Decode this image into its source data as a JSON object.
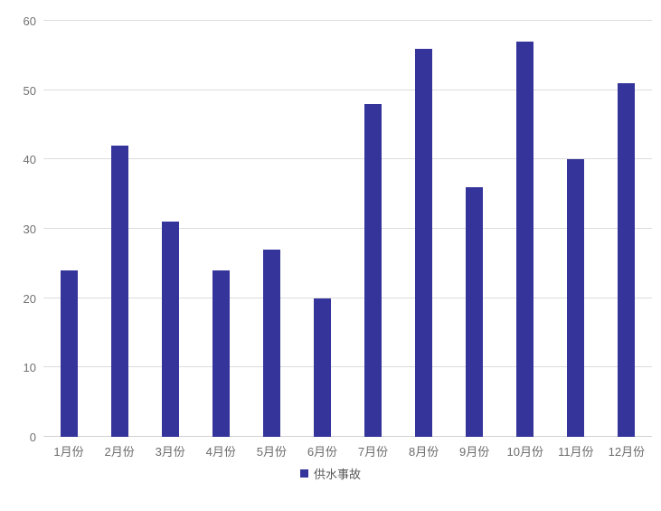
{
  "chart_data": {
    "type": "bar",
    "title": "",
    "categories": [
      "1月份",
      "2月份",
      "3月份",
      "4月份",
      "5月份",
      "6月份",
      "7月份",
      "8月份",
      "9月份",
      "10月份",
      "11月份",
      "12月份"
    ],
    "values": [
      24,
      42,
      31,
      24,
      27,
      20,
      48,
      56,
      36,
      57,
      40,
      51
    ],
    "series_name": "供水事故",
    "xlabel": "",
    "ylabel": "",
    "ylim": [
      0,
      60
    ],
    "yticks": [
      0,
      10,
      20,
      30,
      40,
      50,
      60
    ],
    "grid": true,
    "legend_position": "bottom",
    "bar_color": "#35349b",
    "gridline_color": "#dcdcdc",
    "axis_text_color": "#6b6b6b",
    "background_color": "#ffffff"
  }
}
